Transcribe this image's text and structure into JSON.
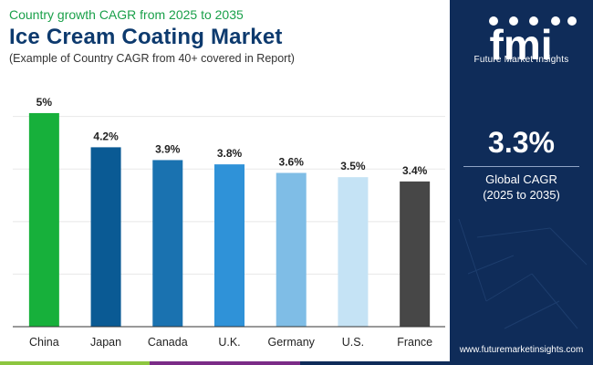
{
  "header": {
    "subtitle": "Country growth CAGR from 2025 to 2035",
    "title": "Ice Cream Coating Market",
    "caption": "(Example of Country CAGR from 40+ covered in Report)"
  },
  "sidebar": {
    "brand": "Future Market Insights",
    "logo_text": "fmi",
    "global_value": "3.3%",
    "global_label": "Global CAGR",
    "global_period": "(2025 to 2035)",
    "website": "www.futuremarketinsights.com"
  },
  "colors": {
    "accent_green": "#1aa04a",
    "navy": "#0f2c59",
    "title_navy": "#0d3a6e",
    "bottom_bar": [
      "#8dc63f",
      "#7b2c87",
      "#0f2c59"
    ]
  },
  "chart_data": {
    "type": "bar",
    "title": "Ice Cream Coating Market",
    "xlabel": "",
    "ylabel": "",
    "ylim": [
      0,
      5.0
    ],
    "grid": true,
    "categories": [
      "China",
      "Japan",
      "Canada",
      "U.K.",
      "Germany",
      "U.S.",
      "France"
    ],
    "values": [
      5.0,
      4.2,
      3.9,
      3.8,
      3.6,
      3.5,
      3.4
    ],
    "labels": [
      "5%",
      "4.2%",
      "3.9%",
      "3.8%",
      "3.6%",
      "3.5%",
      "3.4%"
    ],
    "colors": [
      "#17b03b",
      "#0a5a94",
      "#1a72b0",
      "#2f92d8",
      "#7fbde6",
      "#c5e3f5",
      "#474747"
    ]
  }
}
